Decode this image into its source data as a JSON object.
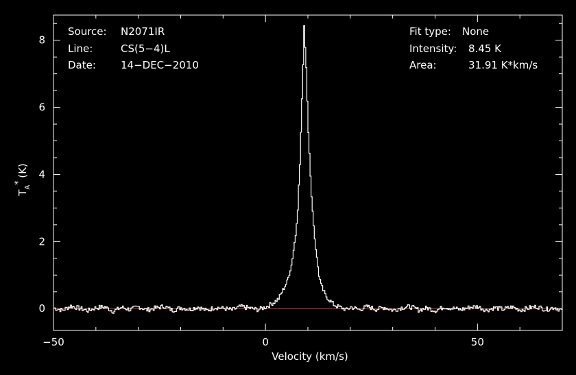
{
  "chart_data": {
    "type": "line",
    "title": "",
    "xlabel": "Velocity (km/s)",
    "ylabel": "T_A* (K)",
    "ylabel_parts": {
      "main": "T",
      "sub": "A",
      "sup": "*",
      "unit": "(K)"
    },
    "xlim": [
      -50,
      70
    ],
    "ylim": [
      -0.65,
      8.75
    ],
    "x_ticks": [
      -50,
      0,
      50
    ],
    "y_ticks": [
      0,
      2,
      4,
      6,
      8
    ],
    "grid": false,
    "colors": {
      "background": "#000000",
      "axes": "#ffffff",
      "series": "#ffffff",
      "baseline": "#c0392b"
    },
    "info_left": [
      {
        "key": "Source:",
        "value": "N2071IR"
      },
      {
        "key": "Line:",
        "value": "CS(5−4)L"
      },
      {
        "key": "Date:",
        "value": "14−DEC−2010"
      }
    ],
    "info_right": [
      {
        "key": "Fit type:",
        "value": "None"
      },
      {
        "key": "Intensity:",
        "value": "8.45 K"
      },
      {
        "key": "Area:",
        "value": "31.91 K*km/s"
      }
    ],
    "series": [
      {
        "x": [
          -50,
          -48,
          -46,
          -44,
          -42,
          -40,
          -38,
          -36,
          -34,
          -32,
          -30,
          -28,
          -26,
          -24,
          -22,
          -20,
          -18,
          -16,
          -14,
          -12,
          -10,
          -8,
          -6,
          -4,
          -2,
          0,
          1,
          2,
          3,
          4,
          5,
          6,
          7,
          7.5,
          8,
          8.5,
          9,
          9.5,
          10,
          10.5,
          11,
          11.5,
          12,
          12.5,
          13,
          14,
          15,
          16,
          17,
          18,
          19,
          20,
          22,
          24,
          26,
          28,
          30,
          32,
          34,
          36,
          38,
          40,
          42,
          44,
          46,
          48,
          50,
          52,
          54,
          56,
          58,
          60,
          62,
          64,
          66,
          68,
          70
        ],
        "values": [
          0.02,
          -0.05,
          0.08,
          0.01,
          -0.06,
          0.03,
          0.05,
          -0.08,
          0.04,
          -0.03,
          0.06,
          -0.04,
          0.02,
          0.07,
          -0.05,
          0.03,
          -0.02,
          0.05,
          -0.06,
          0.04,
          0.01,
          -0.04,
          0.06,
          0.02,
          -0.03,
          0.05,
          0.12,
          0.2,
          0.3,
          0.55,
          0.8,
          1.3,
          2.2,
          3.0,
          4.3,
          6.2,
          8.45,
          7.2,
          5.3,
          3.9,
          2.9,
          2.1,
          1.5,
          1.0,
          0.7,
          0.4,
          0.25,
          0.12,
          0.06,
          0.02,
          -0.04,
          0.05,
          -0.03,
          0.06,
          -0.02,
          0.04,
          -0.05,
          0.03,
          0.06,
          -0.04,
          0.02,
          -0.06,
          0.05,
          0.01,
          -0.03,
          0.04,
          0.06,
          -0.05,
          0.03,
          -0.02,
          0.05,
          -0.04,
          0.02,
          0.06,
          -0.03,
          0.04,
          -0.06
        ]
      }
    ]
  }
}
